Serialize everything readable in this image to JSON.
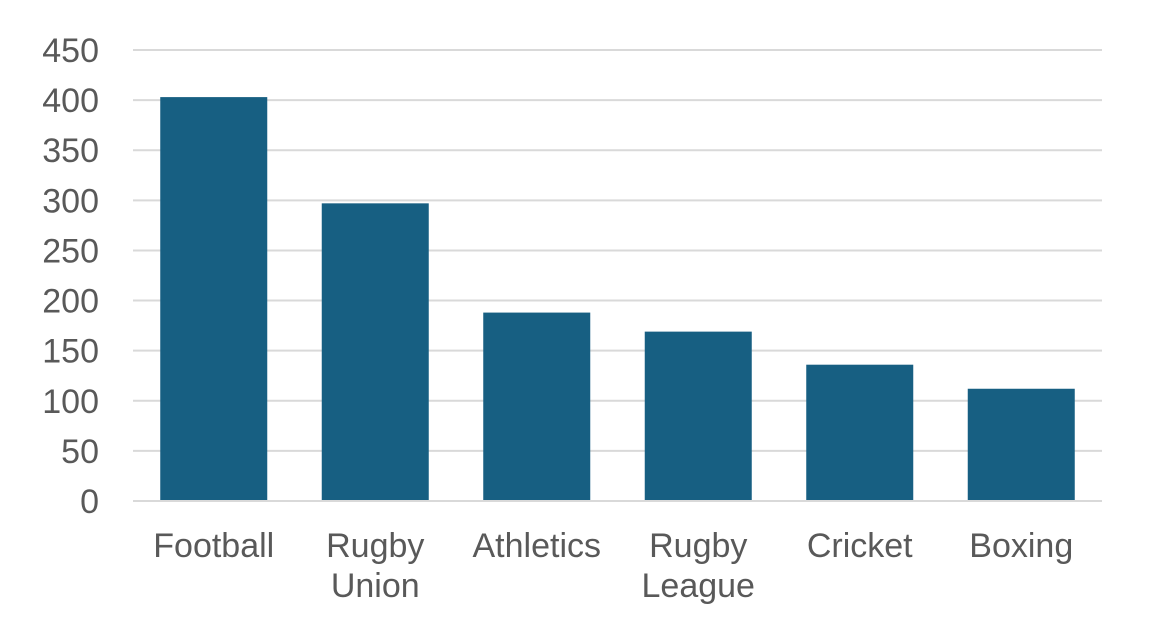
{
  "chart_data": {
    "type": "bar",
    "categories": [
      [
        "Football"
      ],
      [
        "Rugby",
        "Union"
      ],
      [
        "Athletics"
      ],
      [
        "Rugby",
        "League"
      ],
      [
        "Cricket"
      ],
      [
        "Boxing"
      ]
    ],
    "values": [
      403,
      297,
      188,
      169,
      136,
      112
    ],
    "title": "",
    "xlabel": "",
    "ylabel": "",
    "ylim": [
      0,
      450
    ],
    "yticks": [
      0,
      50,
      100,
      150,
      200,
      250,
      300,
      350,
      400,
      450
    ],
    "grid": true,
    "legend": "none",
    "colors": {
      "bar": "#175f82",
      "grid": "#d9d9d9",
      "text": "#595959"
    }
  }
}
